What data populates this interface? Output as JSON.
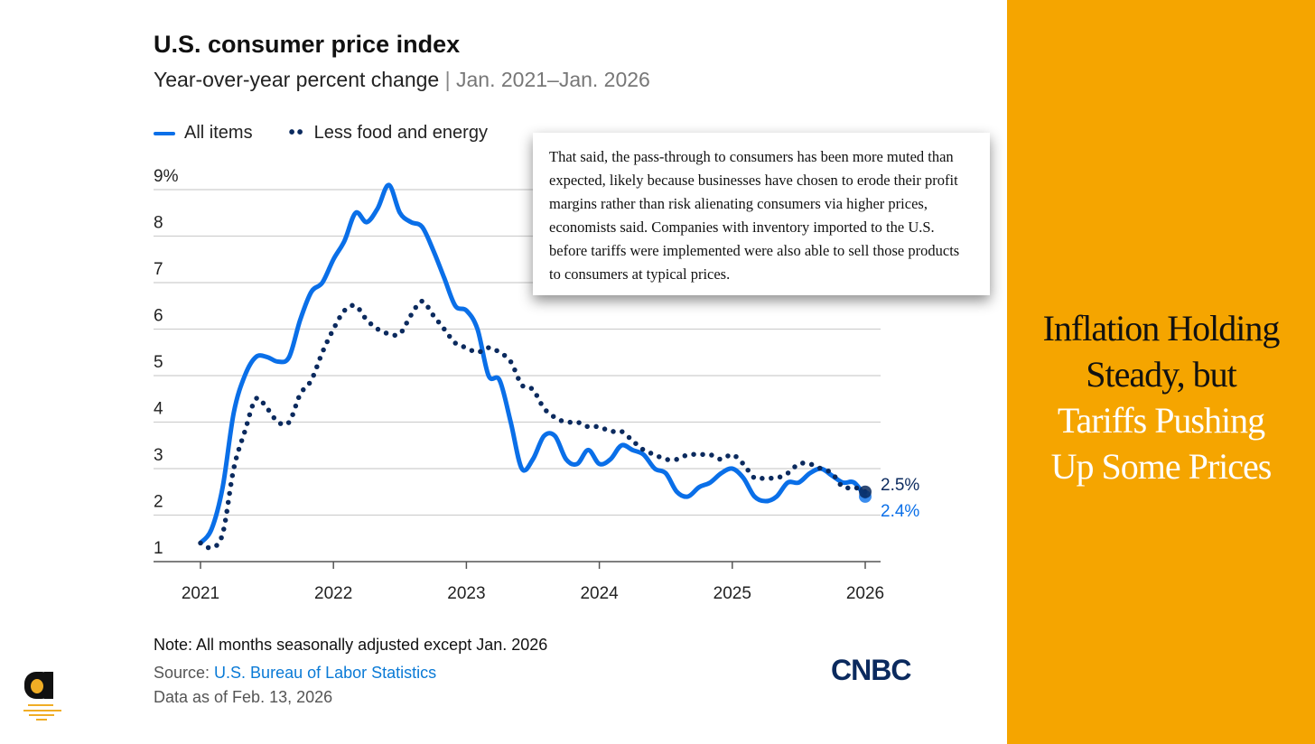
{
  "chart_data": {
    "type": "line",
    "title": "U.S. consumer price index",
    "subtitle": "Year-over-year percent change",
    "date_range": "Jan. 2021–Jan. 2026",
    "xlabel": "",
    "ylabel": "",
    "y_ticks": [
      "9%",
      "8",
      "7",
      "6",
      "5",
      "4",
      "3",
      "2",
      "1"
    ],
    "y_tick_values": [
      9,
      8,
      7,
      6,
      5,
      4,
      3,
      2,
      1
    ],
    "x_ticks": [
      "2021",
      "2022",
      "2023",
      "2024",
      "2025",
      "2026"
    ],
    "ylim": [
      1,
      9
    ],
    "xlim": [
      2021,
      2026
    ],
    "grid": true,
    "legend_placement": "top-left",
    "x_start": "Jan. 2021",
    "x_step": "monthly",
    "series": [
      {
        "name": "All items",
        "style": "solid",
        "color": "#0a6fe8",
        "values": [
          1.4,
          1.7,
          2.6,
          4.2,
          5.0,
          5.4,
          5.4,
          5.3,
          5.4,
          6.2,
          6.8,
          7.0,
          7.5,
          7.9,
          8.5,
          8.3,
          8.6,
          9.1,
          8.5,
          8.3,
          8.2,
          7.7,
          7.1,
          6.5,
          6.4,
          6.0,
          5.0,
          4.9,
          4.0,
          3.0,
          3.2,
          3.7,
          3.7,
          3.2,
          3.1,
          3.4,
          3.1,
          3.2,
          3.5,
          3.4,
          3.3,
          3.0,
          2.9,
          2.5,
          2.4,
          2.6,
          2.7,
          2.9,
          3.0,
          2.8,
          2.4,
          2.3,
          2.4,
          2.7,
          2.7,
          2.9,
          3.0,
          2.85,
          2.7,
          2.7,
          2.4
        ],
        "end_label": "2.4%"
      },
      {
        "name": "Less food and energy",
        "style": "dotted",
        "color": "#0b2a5e",
        "values": [
          1.4,
          1.3,
          1.6,
          3.0,
          3.8,
          4.5,
          4.3,
          4.0,
          4.0,
          4.6,
          4.9,
          5.5,
          6.0,
          6.4,
          6.5,
          6.2,
          6.0,
          5.9,
          5.9,
          6.3,
          6.6,
          6.3,
          6.0,
          5.7,
          5.6,
          5.5,
          5.6,
          5.5,
          5.3,
          4.8,
          4.7,
          4.3,
          4.1,
          4.0,
          4.0,
          3.9,
          3.9,
          3.8,
          3.8,
          3.6,
          3.4,
          3.3,
          3.2,
          3.2,
          3.3,
          3.3,
          3.3,
          3.2,
          3.3,
          3.1,
          2.8,
          2.8,
          2.8,
          2.9,
          3.1,
          3.1,
          3.0,
          2.9,
          2.6,
          2.6,
          2.5
        ],
        "end_label": "2.5%"
      }
    ]
  },
  "legend": {
    "all_items": "All items",
    "core": "Less food and energy"
  },
  "quote": "That said, the pass-through to consumers has been more muted than expected, likely because businesses have chosen to erode their profit margins rather than risk alienating consumers via higher prices, economists said. Companies with inventory imported to the U.S. before tariffs were implemented were also able to sell those products to consumers at typical prices.",
  "footer": {
    "note": "Note: All months seasonally adjusted except Jan. 2026",
    "source_label": "Source: ",
    "source_link": "U.S. Bureau of Labor Statistics",
    "as_of": "Data as of Feb. 13, 2026",
    "brand": "CNBC"
  },
  "headline": {
    "line1": "Inflation Holding",
    "line2": "Steady, but",
    "line3": "Tariffs Pushing",
    "line4": "Up Some Prices"
  },
  "colors": {
    "accent_panel": "#f5a500",
    "all_items": "#0a6fe8",
    "core": "#0b2a5e"
  }
}
